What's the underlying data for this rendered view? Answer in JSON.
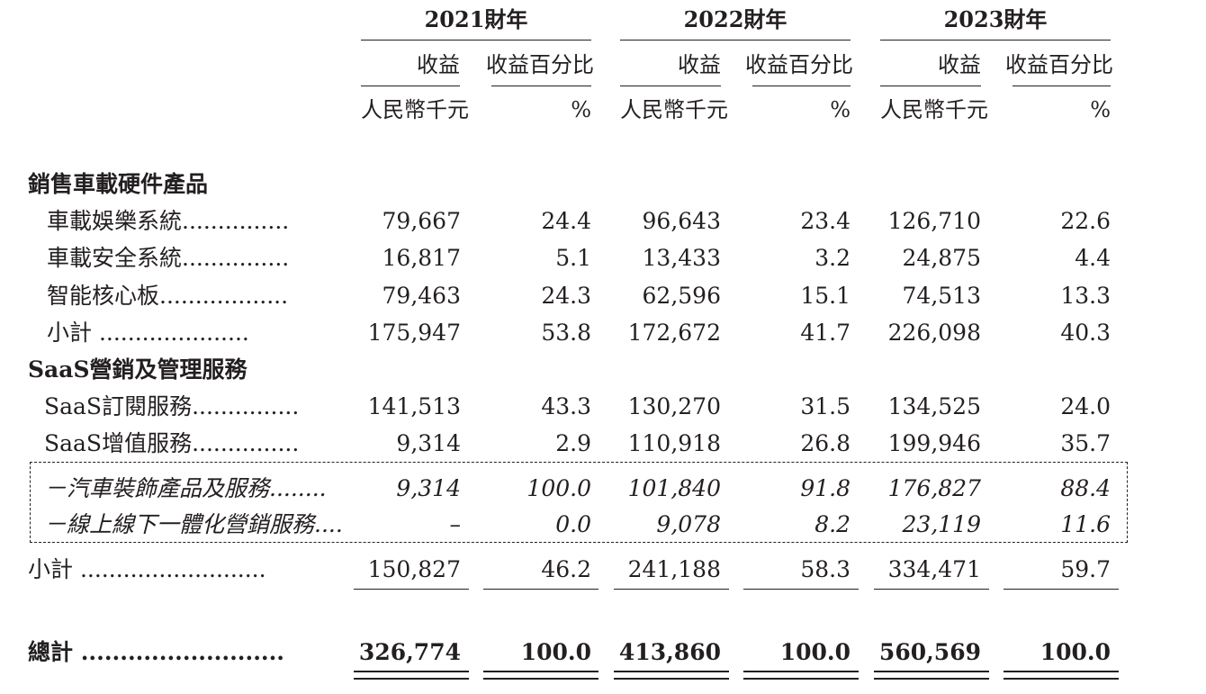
{
  "years": [
    "2021財年",
    "2022財年",
    "2023財年"
  ],
  "col_revenue": "收益",
  "col_pct": "收益百分比",
  "unit_revenue": "人民幣千元",
  "unit_pct": "%",
  "sections": [
    {
      "title": "銷售車載硬件產品",
      "rows": [
        {
          "label": "車載娛樂系統",
          "v": [
            "79,667",
            "24.4",
            "96,643",
            "23.4",
            "126,710",
            "22.6"
          ]
        },
        {
          "label": "車載安全系統",
          "v": [
            "16,817",
            "5.1",
            "13,433",
            "3.2",
            "24,875",
            "4.4"
          ]
        },
        {
          "label": "智能核心板",
          "v": [
            "79,463",
            "24.3",
            "62,596",
            "15.1",
            "74,513",
            "13.3"
          ]
        },
        {
          "label": "小計",
          "v": [
            "175,947",
            "53.8",
            "172,672",
            "41.7",
            "226,098",
            "40.3"
          ]
        }
      ]
    },
    {
      "title": "SaaS營銷及管理服務",
      "rows": [
        {
          "label": "SaaS訂閱服務",
          "v": [
            "141,513",
            "43.3",
            "130,270",
            "31.5",
            "134,525",
            "24.0"
          ]
        },
        {
          "label": "SaaS增值服務",
          "v": [
            "9,314",
            "2.9",
            "110,918",
            "26.8",
            "199,946",
            "35.7"
          ]
        },
        {
          "label": "－汽車裝飾產品及服務",
          "v": [
            "9,314",
            "100.0",
            "101,840",
            "91.8",
            "176,827",
            "88.4"
          ]
        },
        {
          "label": "－線上線下一體化營銷服務",
          "v": [
            "–",
            "0.0",
            "9,078",
            "8.2",
            "23,119",
            "11.6"
          ]
        },
        {
          "label": "小計",
          "v": [
            "150,827",
            "46.2",
            "241,188",
            "58.3",
            "334,471",
            "59.7"
          ]
        }
      ]
    }
  ],
  "total": {
    "label": "總計",
    "v": [
      "326,774",
      "100.0",
      "413,860",
      "100.0",
      "560,569",
      "100.0"
    ]
  }
}
